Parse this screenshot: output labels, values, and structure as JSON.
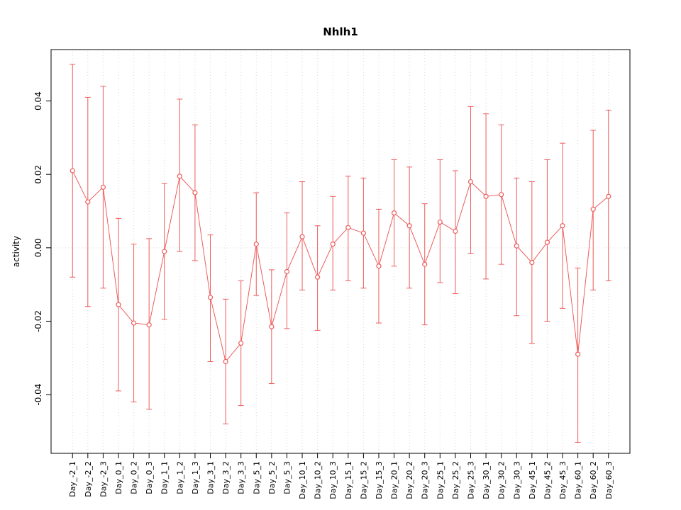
{
  "chart_data": {
    "type": "line",
    "title": "Nhlh1",
    "xlabel": "",
    "ylabel": "activity",
    "legend": "none",
    "grid": {
      "vertical_dotted": true,
      "horizontal_zero_line_dotted": true
    },
    "marker": "open-circle",
    "error_bars": true,
    "ylim": [
      -0.056,
      0.054
    ],
    "yticks": [
      -0.04,
      -0.02,
      0.0,
      0.02,
      0.04
    ],
    "colors": {
      "series": "#ee5c5c",
      "grid": "#d9d9d9",
      "axis": "#000000",
      "text": "#000000",
      "background": "#ffffff"
    },
    "categories": [
      "Day_-2_1",
      "Day_-2_2",
      "Day_-2_3",
      "Day_0_1",
      "Day_0_2",
      "Day_0_3",
      "Day_1_1",
      "Day_1_2",
      "Day_1_3",
      "Day_3_1",
      "Day_3_2",
      "Day_3_3",
      "Day_5_1",
      "Day_5_2",
      "Day_5_3",
      "Day_10_1",
      "Day_10_2",
      "Day_10_3",
      "Day_15_1",
      "Day_15_2",
      "Day_15_3",
      "Day_20_1",
      "Day_20_2",
      "Day_20_3",
      "Day_25_1",
      "Day_25_2",
      "Day_25_3",
      "Day_30_1",
      "Day_30_2",
      "Day_30_3",
      "Day_45_1",
      "Day_45_2",
      "Day_45_3",
      "Day_60_1",
      "Day_60_2",
      "Day_60_3"
    ],
    "values": [
      0.021,
      0.0125,
      0.0165,
      -0.0155,
      -0.0205,
      -0.021,
      -0.001,
      0.0195,
      0.015,
      -0.0135,
      -0.031,
      -0.026,
      0.001,
      -0.0215,
      -0.0065,
      0.003,
      -0.008,
      0.001,
      0.0055,
      0.004,
      -0.005,
      0.0095,
      0.006,
      -0.0045,
      0.007,
      0.0045,
      0.018,
      0.014,
      0.0145,
      0.0005,
      -0.004,
      0.0015,
      0.006,
      -0.029,
      0.0105,
      0.014
    ],
    "error_high": [
      0.05,
      0.041,
      0.044,
      0.008,
      0.001,
      0.0025,
      0.0175,
      0.0405,
      0.0335,
      0.0035,
      -0.014,
      -0.009,
      0.015,
      -0.006,
      0.0095,
      0.018,
      0.006,
      0.014,
      0.0195,
      0.019,
      0.0105,
      0.024,
      0.022,
      0.012,
      0.024,
      0.021,
      0.0385,
      0.0365,
      0.0335,
      0.019,
      0.018,
      0.024,
      0.0285,
      -0.0055,
      0.032,
      0.0375
    ],
    "error_low": [
      -0.008,
      -0.016,
      -0.011,
      -0.039,
      -0.042,
      -0.044,
      -0.0195,
      -0.001,
      -0.0035,
      -0.031,
      -0.048,
      -0.043,
      -0.013,
      -0.037,
      -0.022,
      -0.0115,
      -0.0225,
      -0.0115,
      -0.009,
      -0.011,
      -0.0205,
      -0.005,
      -0.011,
      -0.021,
      -0.0095,
      -0.0125,
      -0.0015,
      -0.0085,
      -0.0045,
      -0.0185,
      -0.026,
      -0.02,
      -0.0165,
      -0.053,
      -0.0115,
      -0.009
    ]
  }
}
